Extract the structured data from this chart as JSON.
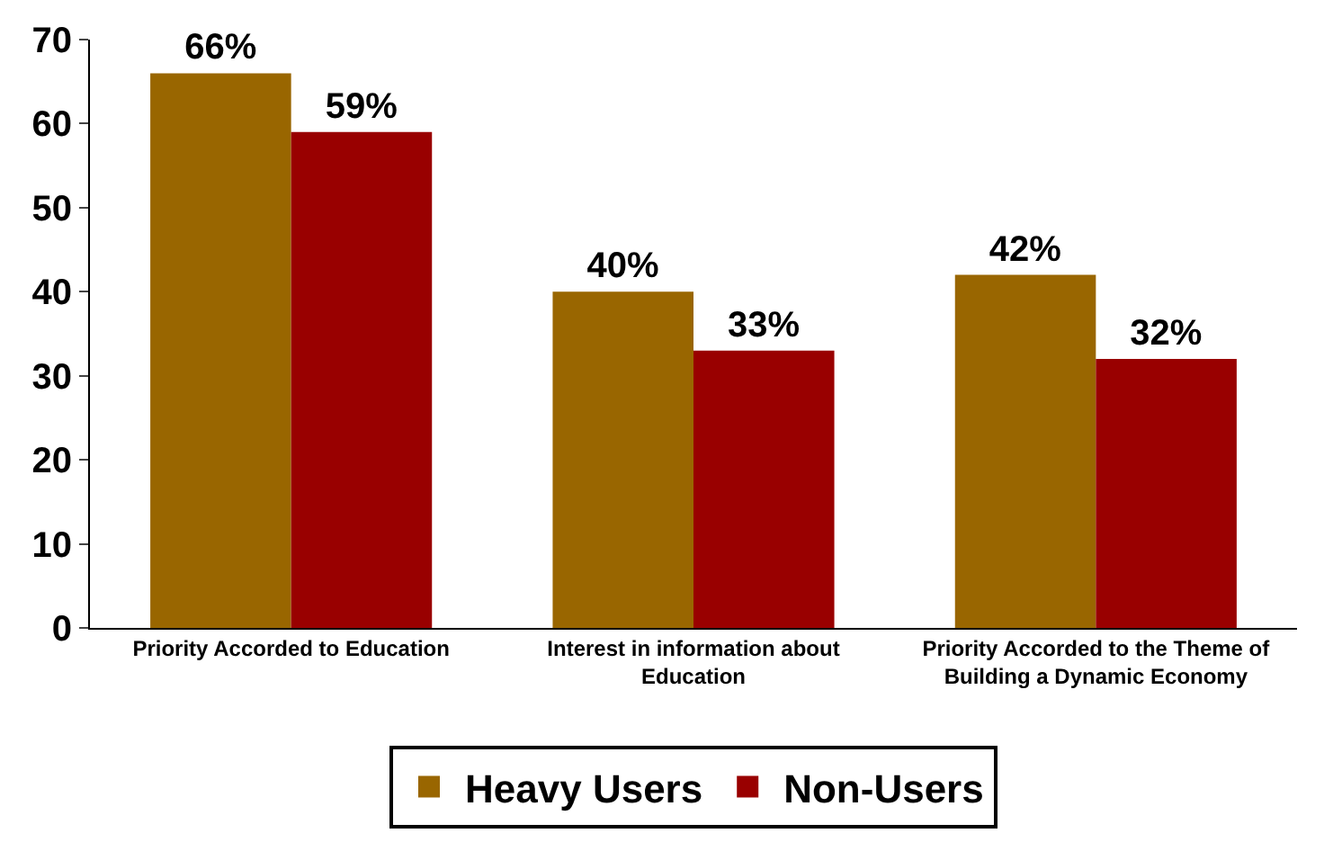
{
  "chart_data": {
    "type": "bar",
    "categories": [
      "Priority Accorded to Education",
      "Interest in information about Education",
      "Priority Accorded to the Theme of Building a Dynamic Economy"
    ],
    "series": [
      {
        "name": "Heavy Users",
        "color": "#996600",
        "values": [
          66,
          40,
          42
        ],
        "value_labels": [
          "66%",
          "40%",
          "42%"
        ]
      },
      {
        "name": "Non-Users",
        "color": "#990000",
        "values": [
          59,
          33,
          32
        ],
        "value_labels": [
          "59%",
          "33%",
          "32%"
        ]
      }
    ],
    "ylim": [
      0,
      70
    ],
    "yticks": [
      0,
      10,
      20,
      30,
      40,
      50,
      60,
      70
    ],
    "legend": "bottom"
  }
}
